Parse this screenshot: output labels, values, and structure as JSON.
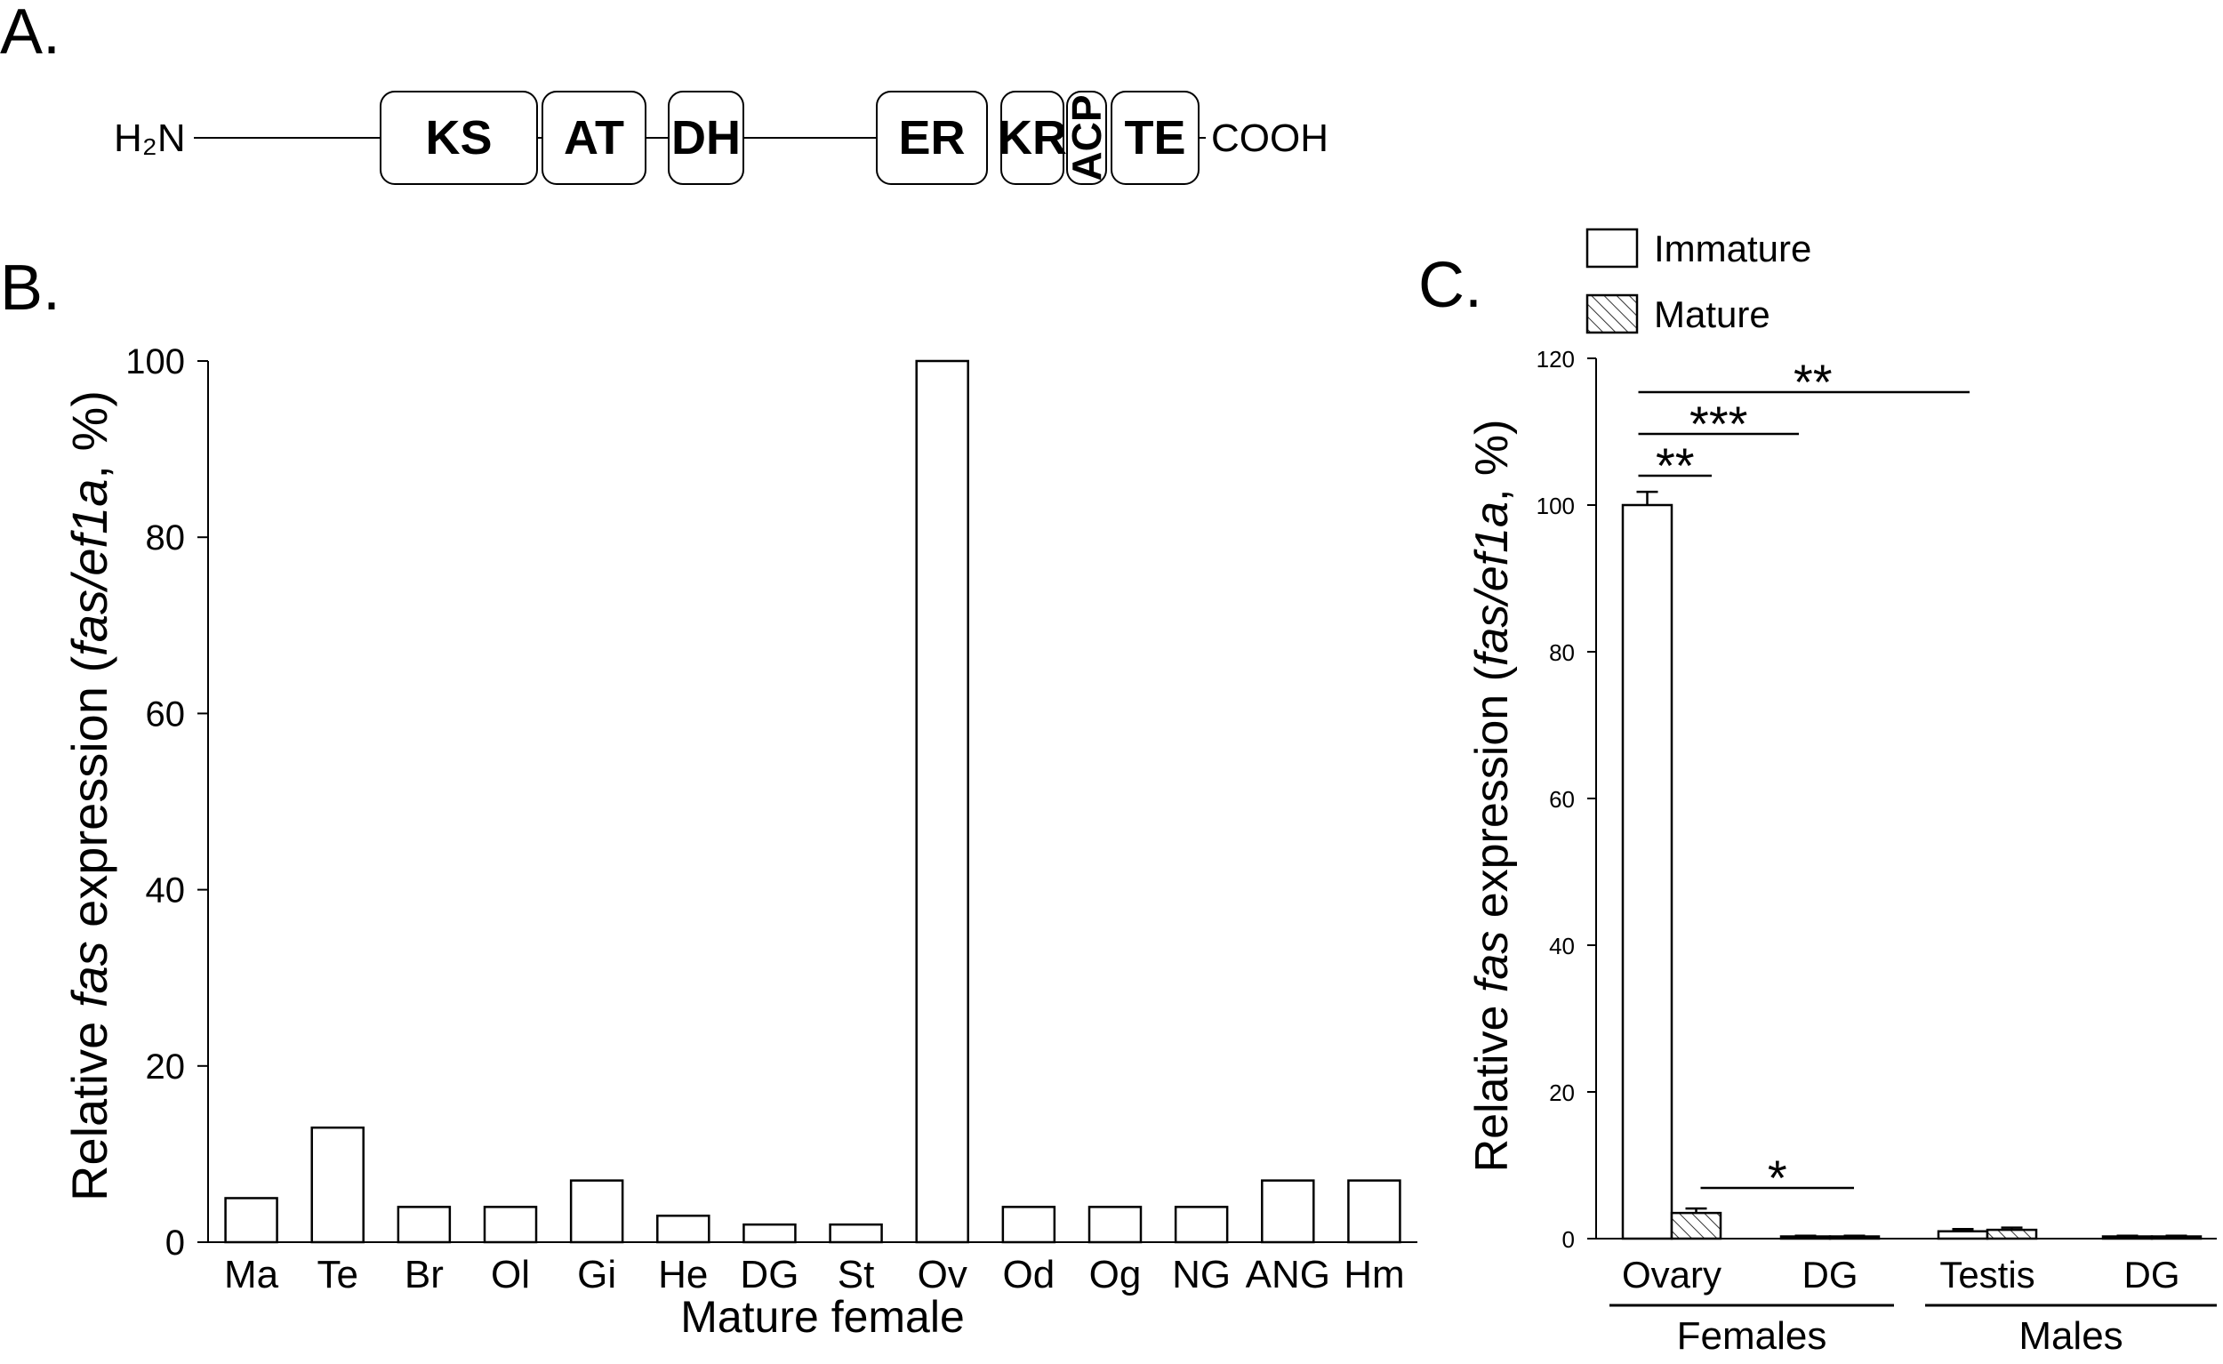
{
  "panelA": {
    "label": "A.",
    "n_terminus": "H₂N",
    "c_terminus": "COOH",
    "domains": [
      "KS",
      "AT",
      "DH",
      "ER",
      "KR",
      "ACP",
      "TE"
    ]
  },
  "chart_data": [
    {
      "panel": "B.",
      "type": "bar",
      "xlabel": "Mature female",
      "ylabel_parts": [
        "Relative ",
        "fas",
        " expression (",
        "fas/ef1a",
        ", %)"
      ],
      "ylim": [
        0,
        100
      ],
      "yticks": [
        "0",
        "20",
        "40",
        "60",
        "80",
        "100"
      ],
      "grid": false,
      "categories": [
        "Ma",
        "Te",
        "Br",
        "Ol",
        "Gi",
        "He",
        "DG",
        "St",
        "Ov",
        "Od",
        "Og",
        "NG",
        "ANG",
        "Hm"
      ],
      "values": [
        5,
        13,
        4,
        4,
        7,
        3,
        2,
        2,
        100,
        4,
        4,
        4,
        7,
        7
      ]
    },
    {
      "panel": "C.",
      "type": "bar",
      "ylabel_parts": [
        "Relative ",
        "fas",
        " expression (",
        "fas/ef1a",
        ", %)"
      ],
      "ylim": [
        0,
        120
      ],
      "yticks": [
        "0",
        "20",
        "40",
        "60",
        "80",
        "100",
        "120"
      ],
      "grid": false,
      "legend_position": "top",
      "categories": [
        "Ovary",
        "DG",
        "Testis",
        "DG"
      ],
      "groups": [
        {
          "label": "Females",
          "categories": [
            "Ovary",
            "DG"
          ]
        },
        {
          "label": "Males",
          "categories": [
            "Testis",
            "DG"
          ]
        }
      ],
      "series": [
        {
          "name": "Immature",
          "values": [
            100,
            0.3,
            1.0,
            0.3
          ],
          "errors": [
            1.8,
            0.1,
            0.3,
            0.1
          ]
        },
        {
          "name": "Mature",
          "values": [
            3.5,
            0.3,
            1.2,
            0.3
          ],
          "errors": [
            0.6,
            0.1,
            0.3,
            0.1
          ]
        }
      ],
      "significance": [
        {
          "label": "**",
          "from": "Ovary Immature",
          "to": "Ovary Mature"
        },
        {
          "label": "***",
          "from": "Ovary Immature",
          "to": "Females DG"
        },
        {
          "label": "**",
          "from": "Ovary Immature",
          "to": "Testis"
        },
        {
          "label": "*",
          "from": "Ovary Mature",
          "to": "Females DG Mature"
        }
      ]
    }
  ]
}
